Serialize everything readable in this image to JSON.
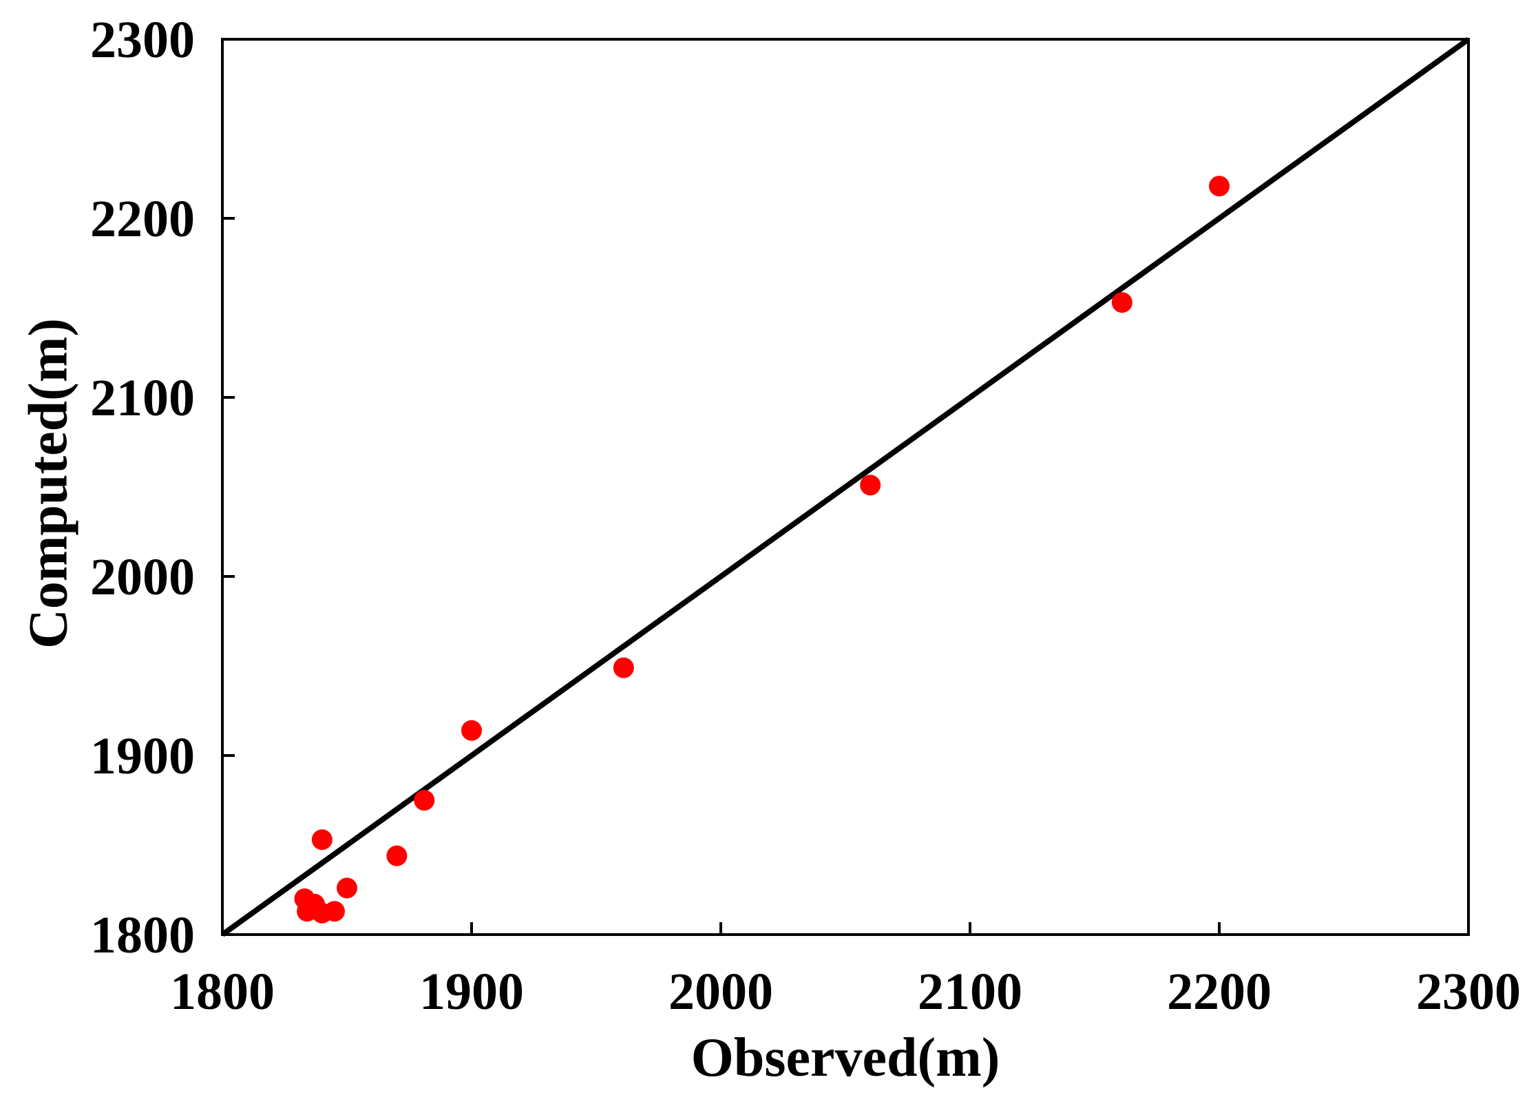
{
  "chart_data": {
    "type": "scatter",
    "xlabel": "Observed(m)",
    "ylabel": "Computed(m)",
    "xlim": [
      1800,
      2300
    ],
    "ylim": [
      1800,
      2300
    ],
    "xticks": [
      "1800",
      "1900",
      "2000",
      "2100",
      "2200",
      "2300"
    ],
    "yticks": [
      "1800",
      "1900",
      "2000",
      "2100",
      "2200",
      "2300"
    ],
    "grid": false,
    "reference_line": {
      "from": [
        1800,
        1800
      ],
      "to": [
        2300,
        2300
      ],
      "color": "#000000"
    },
    "series": [
      {
        "color": "#ff0000",
        "points": [
          {
            "x": 1833,
            "y": 1820
          },
          {
            "x": 1837,
            "y": 1817
          },
          {
            "x": 1834,
            "y": 1813
          },
          {
            "x": 1840,
            "y": 1812
          },
          {
            "x": 1845,
            "y": 1813
          },
          {
            "x": 1840,
            "y": 1853
          },
          {
            "x": 1850,
            "y": 1826
          },
          {
            "x": 1870,
            "y": 1844
          },
          {
            "x": 1881,
            "y": 1875
          },
          {
            "x": 1900,
            "y": 1914
          },
          {
            "x": 1961,
            "y": 1949
          },
          {
            "x": 2060,
            "y": 2051
          },
          {
            "x": 2161,
            "y": 2153
          },
          {
            "x": 2200,
            "y": 2218
          }
        ]
      }
    ]
  }
}
